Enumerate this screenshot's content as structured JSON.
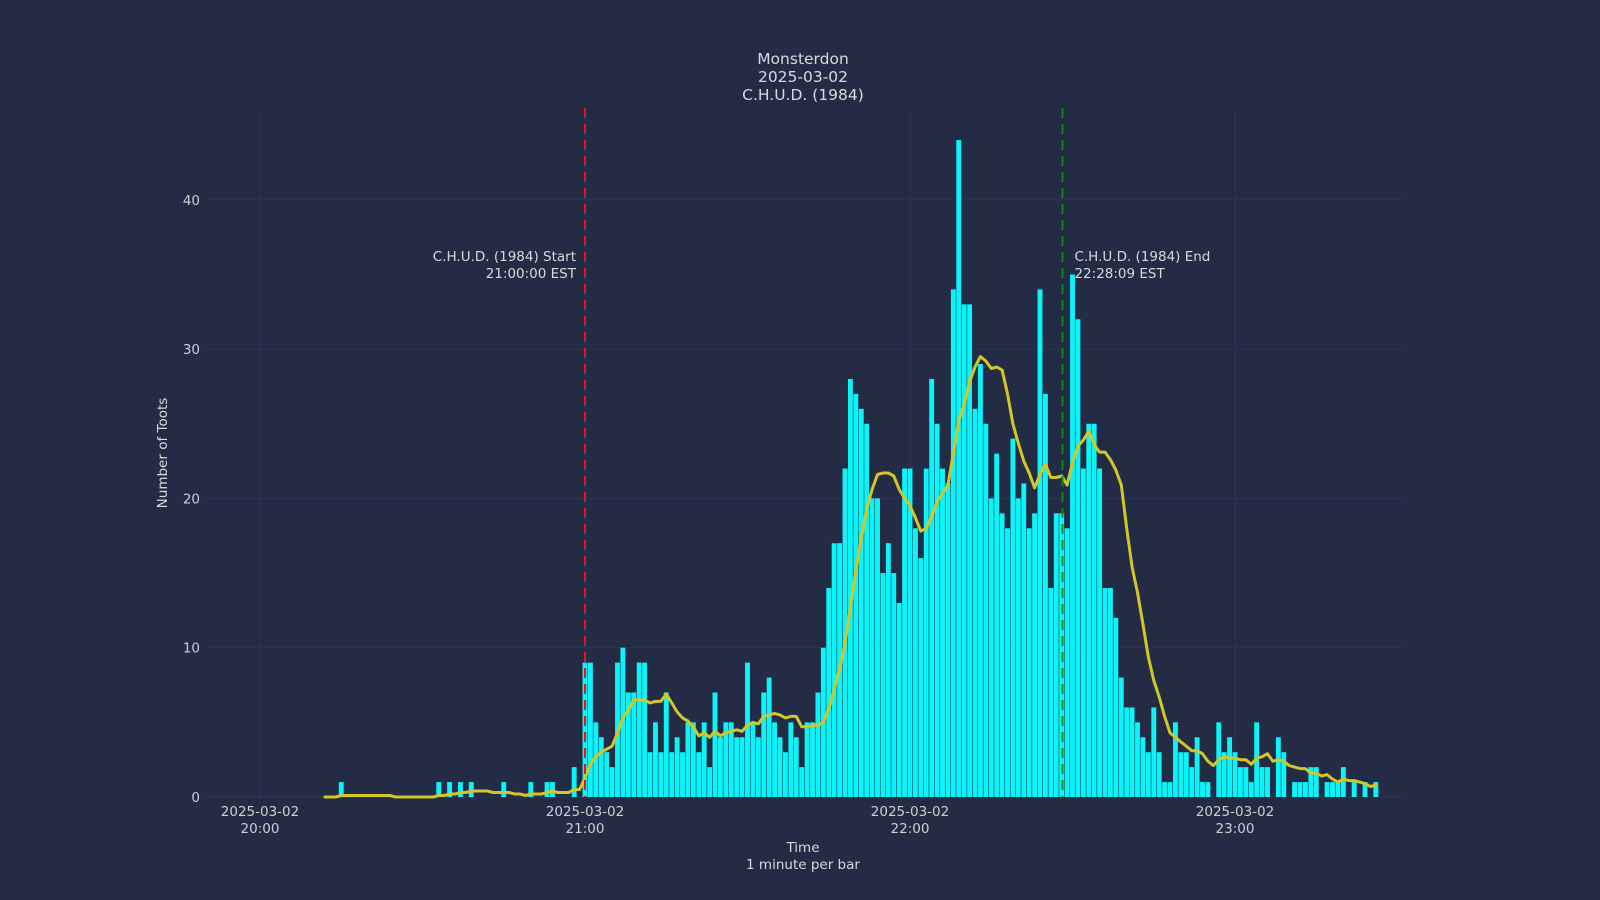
{
  "title": {
    "lines": [
      "Monsterdon",
      "2025-03-02",
      "C.H.U.D. (1984)"
    ]
  },
  "axes": {
    "y": {
      "label": "Number of Toots",
      "ticks": [
        0,
        10,
        20,
        30,
        40
      ]
    },
    "x": {
      "label_lines": [
        "Time",
        "1 minute per bar"
      ],
      "ticks": [
        {
          "minute": 0,
          "line1": "2025-03-02",
          "line2": "20:00"
        },
        {
          "minute": 60,
          "line1": "2025-03-02",
          "line2": "21:00"
        },
        {
          "minute": 120,
          "line1": "2025-03-02",
          "line2": "22:00"
        },
        {
          "minute": 180,
          "line1": "2025-03-02",
          "line2": "23:00"
        }
      ]
    }
  },
  "annotations": [
    {
      "id": "start",
      "lines": [
        "C.H.U.D. (1984) Start",
        "21:00:00 EST"
      ],
      "minute": 60,
      "color": "#EE1111",
      "align": "right"
    },
    {
      "id": "end",
      "lines": [
        "C.H.U.D. (1984) End",
        "22:28:09 EST"
      ],
      "minute": 148.15,
      "color": "#0B8B0B",
      "align": "left"
    }
  ],
  "chart_data": {
    "type": "bar",
    "title": "Monsterdon 2025-03-02 C.H.U.D. (1984)",
    "xlabel": "Time (1 minute per bar)",
    "ylabel": "Number of Toots",
    "ylim": [
      0,
      46
    ],
    "x_start_label": "2025-03-02 20:00",
    "minutes_per_bar": 1,
    "values_per_minute_from_2000": [
      0,
      0,
      0,
      0,
      0,
      0,
      0,
      0,
      0,
      0,
      0,
      0,
      0,
      0,
      0,
      1,
      0,
      0,
      0,
      0,
      0,
      0,
      0,
      0,
      0,
      0,
      0,
      0,
      0,
      0,
      0,
      0,
      0,
      1,
      0,
      1,
      0,
      1,
      0,
      1,
      0,
      0,
      0,
      0,
      0,
      1,
      0,
      0,
      0,
      0,
      1,
      0,
      0,
      1,
      1,
      0,
      0,
      0,
      2,
      0,
      9,
      9,
      5,
      4,
      3,
      2,
      9,
      10,
      7,
      7,
      9,
      9,
      3,
      5,
      3,
      7,
      3,
      4,
      3,
      5,
      5,
      3,
      5,
      2,
      7,
      4,
      5,
      5,
      4,
      4,
      9,
      5,
      4,
      7,
      8,
      5,
      4,
      3,
      5,
      4,
      2,
      5,
      5,
      7,
      10,
      14,
      17,
      17,
      22,
      28,
      27,
      26,
      25,
      20,
      20,
      15,
      17,
      15,
      13,
      22,
      22,
      18,
      16,
      22,
      28,
      25,
      22,
      21,
      34,
      44,
      33,
      33,
      26,
      29,
      25,
      20,
      23,
      19,
      18,
      24,
      20,
      21,
      18,
      19,
      34,
      27,
      14,
      19,
      19,
      18,
      35,
      32,
      22,
      25,
      25,
      22,
      14,
      14,
      12,
      8,
      6,
      6,
      5,
      4,
      3,
      6,
      3,
      1,
      1,
      5,
      3,
      3,
      2,
      4,
      1,
      1,
      0,
      5,
      3,
      4,
      3,
      2,
      2,
      1,
      5,
      2,
      2,
      0,
      4,
      3,
      0,
      1,
      1,
      1,
      2,
      2,
      0,
      1,
      1,
      1,
      2,
      0,
      1,
      0,
      1,
      0,
      1
    ],
    "moving_average": {
      "type": "trailing mean",
      "window_minutes": 10
    },
    "events": {
      "start_minute": 60,
      "end_minute": 148.15
    },
    "grid": true,
    "legend": "none"
  },
  "colors": {
    "background": "#232B45",
    "bar": "#0AF5FA",
    "ma_line": "#D2C728",
    "start_line": "#EE1111",
    "end_line": "#0B8B0B",
    "grid": "#2D3557",
    "text": "#DADADA",
    "tick_text": "#CFCFCF"
  }
}
